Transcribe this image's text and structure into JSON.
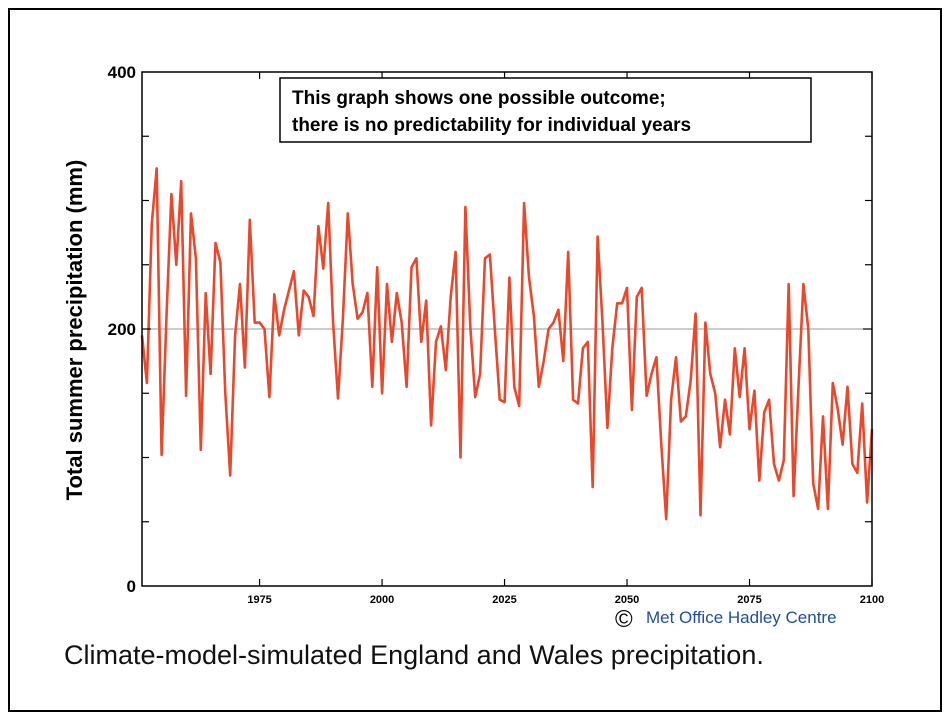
{
  "chart_data": {
    "type": "line",
    "title": "",
    "ylabel": "Total summer precipitation (mm)",
    "xlabel": "",
    "xlim": [
      1951,
      2100
    ],
    "ylim": [
      0,
      400
    ],
    "x_ticks": [
      "1975",
      "2000",
      "2025",
      "2050",
      "2075",
      "2100"
    ],
    "y_ticks": [
      "0",
      "200",
      "400"
    ],
    "grid": "horizontal line at 200",
    "annotation": {
      "line1": "This graph shows one possible outcome;",
      "line2": "there is no predictability for individual years"
    },
    "series": [
      {
        "color": "#e8482c",
        "x": [
          1951,
          1952,
          1953,
          1954,
          1955,
          1956,
          1957,
          1958,
          1959,
          1960,
          1961,
          1962,
          1963,
          1964,
          1965,
          1966,
          1967,
          1968,
          1969,
          1970,
          1971,
          1972,
          1973,
          1974,
          1975,
          1976,
          1977,
          1978,
          1979,
          1980,
          1981,
          1982,
          1983,
          1984,
          1985,
          1986,
          1987,
          1988,
          1989,
          1990,
          1991,
          1992,
          1993,
          1994,
          1995,
          1996,
          1997,
          1998,
          1999,
          2000,
          2001,
          2002,
          2003,
          2004,
          2005,
          2006,
          2007,
          2008,
          2009,
          2010,
          2011,
          2012,
          2013,
          2014,
          2015,
          2016,
          2017,
          2018,
          2019,
          2020,
          2021,
          2022,
          2023,
          2024,
          2025,
          2026,
          2027,
          2028,
          2029,
          2030,
          2031,
          2032,
          2033,
          2034,
          2035,
          2036,
          2037,
          2038,
          2039,
          2040,
          2041,
          2042,
          2043,
          2044,
          2045,
          2046,
          2047,
          2048,
          2049,
          2050,
          2051,
          2052,
          2053,
          2054,
          2055,
          2056,
          2057,
          2058,
          2059,
          2060,
          2061,
          2062,
          2063,
          2064,
          2065,
          2066,
          2067,
          2068,
          2069,
          2070,
          2071,
          2072,
          2073,
          2074,
          2075,
          2076,
          2077,
          2078,
          2079,
          2080,
          2081,
          2082,
          2083,
          2084,
          2085,
          2086,
          2087,
          2088,
          2089,
          2090,
          2091,
          2092,
          2093,
          2094,
          2095,
          2096,
          2097,
          2098,
          2099,
          2100
        ],
        "values": [
          195,
          158,
          282,
          325,
          102,
          210,
          305,
          250,
          315,
          148,
          290,
          255,
          106,
          228,
          165,
          267,
          252,
          150,
          86,
          195,
          235,
          170,
          285,
          205,
          205,
          200,
          147,
          227,
          195,
          215,
          230,
          245,
          195,
          230,
          225,
          210,
          280,
          247,
          298,
          205,
          146,
          208,
          290,
          235,
          208,
          213,
          228,
          155,
          248,
          150,
          235,
          190,
          228,
          205,
          155,
          248,
          255,
          190,
          222,
          125,
          190,
          202,
          168,
          225,
          260,
          100,
          295,
          202,
          147,
          165,
          255,
          258,
          200,
          145,
          143,
          240,
          155,
          140,
          298,
          240,
          210,
          155,
          175,
          200,
          205,
          215,
          175,
          260,
          145,
          142,
          185,
          190,
          77,
          272,
          205,
          123,
          185,
          220,
          220,
          232,
          137,
          225,
          232,
          148,
          165,
          178,
          110,
          52,
          145,
          178,
          128,
          132,
          160,
          212,
          55,
          205,
          165,
          150,
          108,
          145,
          118,
          185,
          147,
          185,
          122,
          152,
          82,
          135,
          145,
          95,
          82,
          98,
          235,
          70,
          155,
          235,
          200,
          80,
          60,
          132,
          60,
          158,
          138,
          110,
          155,
          95,
          88,
          142,
          65,
          122
        ]
      }
    ],
    "credit": "Met Office Hadley Centre",
    "credit_symbol": "©"
  },
  "caption": "Climate-model-simulated England and Wales precipitation."
}
